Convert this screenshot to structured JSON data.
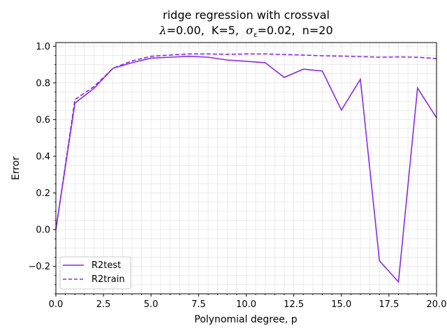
{
  "chart_data": {
    "type": "line",
    "title_line1": "ridge regression with crossval",
    "title_line2": {
      "lambda_symbol": "λ",
      "lambda_value": "=0.00,",
      "k_text": "K=5,",
      "sigma_symbol": "σ",
      "sigma_sub": "ε",
      "sigma_value": "=0.02,",
      "n_text": "n=20"
    },
    "xlabel": "Polynomial degree, p",
    "ylabel": "Error",
    "xlim": [
      0,
      20
    ],
    "ylim": [
      -0.35,
      1.02
    ],
    "xticks": [
      0,
      2.5,
      5,
      7.5,
      10,
      12.5,
      15,
      17.5,
      20
    ],
    "xtick_labels": [
      "0.0",
      "2.5",
      "5.0",
      "7.5",
      "10.0",
      "12.5",
      "15.0",
      "17.5",
      "20.0"
    ],
    "yticks": [
      -0.2,
      0,
      0.2,
      0.4,
      0.6,
      0.8,
      1.0
    ],
    "ytick_labels": [
      "−0.2",
      "0.0",
      "0.2",
      "0.4",
      "0.6",
      "0.8",
      "1.0"
    ],
    "grid": true,
    "legend_position": "lower-left",
    "series": [
      {
        "name": "R2test",
        "style": "solid",
        "color": "#8a2be2",
        "x": [
          0,
          1,
          2,
          3,
          4,
          5,
          6,
          7,
          8,
          9,
          10,
          11,
          12,
          13,
          14,
          15,
          16,
          17,
          18,
          19,
          20
        ],
        "values": [
          0.0,
          0.69,
          0.77,
          0.88,
          0.91,
          0.935,
          0.94,
          0.945,
          0.94,
          0.925,
          0.918,
          0.91,
          0.83,
          0.875,
          0.865,
          0.652,
          0.82,
          -0.17,
          -0.285,
          0.772,
          0.61
        ]
      },
      {
        "name": "R2train",
        "style": "dashed",
        "color": "#8a2be2",
        "x": [
          0,
          1,
          2,
          3,
          4,
          5,
          6,
          7,
          8,
          9,
          10,
          11,
          12,
          13,
          14,
          15,
          16,
          17,
          18,
          19,
          20
        ],
        "values": [
          0.0,
          0.71,
          0.78,
          0.88,
          0.92,
          0.945,
          0.952,
          0.958,
          0.958,
          0.956,
          0.958,
          0.958,
          0.955,
          0.952,
          0.948,
          0.946,
          0.944,
          0.94,
          0.942,
          0.94,
          0.933
        ]
      }
    ]
  }
}
